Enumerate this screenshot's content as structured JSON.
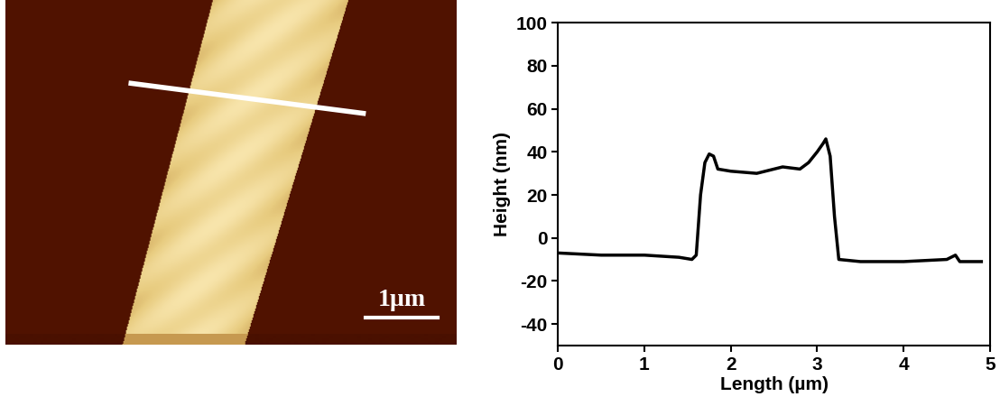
{
  "afm_image": {
    "scale_bar_label": "1µm"
  },
  "chart_data": {
    "type": "line",
    "x_label": "Length (µm)",
    "y_label": "Height (nm)",
    "x": [
      0,
      0.5,
      1.0,
      1.4,
      1.55,
      1.6,
      1.65,
      1.7,
      1.75,
      1.8,
      1.85,
      2.0,
      2.3,
      2.6,
      2.8,
      2.9,
      3.0,
      3.07,
      3.1,
      3.15,
      3.2,
      3.25,
      3.5,
      4.0,
      4.5,
      4.6,
      4.65,
      4.9
    ],
    "series": [
      {
        "name": null,
        "color": "#000000",
        "line_style": "solid",
        "values": [
          -7,
          -8,
          -8,
          -9,
          -10,
          -8,
          20,
          35,
          39,
          38,
          32,
          31,
          30,
          33,
          32,
          35,
          40,
          44,
          46,
          38,
          10,
          -10,
          -11,
          -11,
          -10,
          -8,
          -11,
          -11
        ]
      }
    ],
    "xlim": [
      0,
      5
    ],
    "xticks": [
      0,
      1,
      2,
      3,
      4,
      5
    ],
    "ylim": [
      -50,
      100
    ],
    "yticks": [
      -40,
      -20,
      0,
      20,
      40,
      60,
      80,
      100
    ],
    "grid": false
  }
}
